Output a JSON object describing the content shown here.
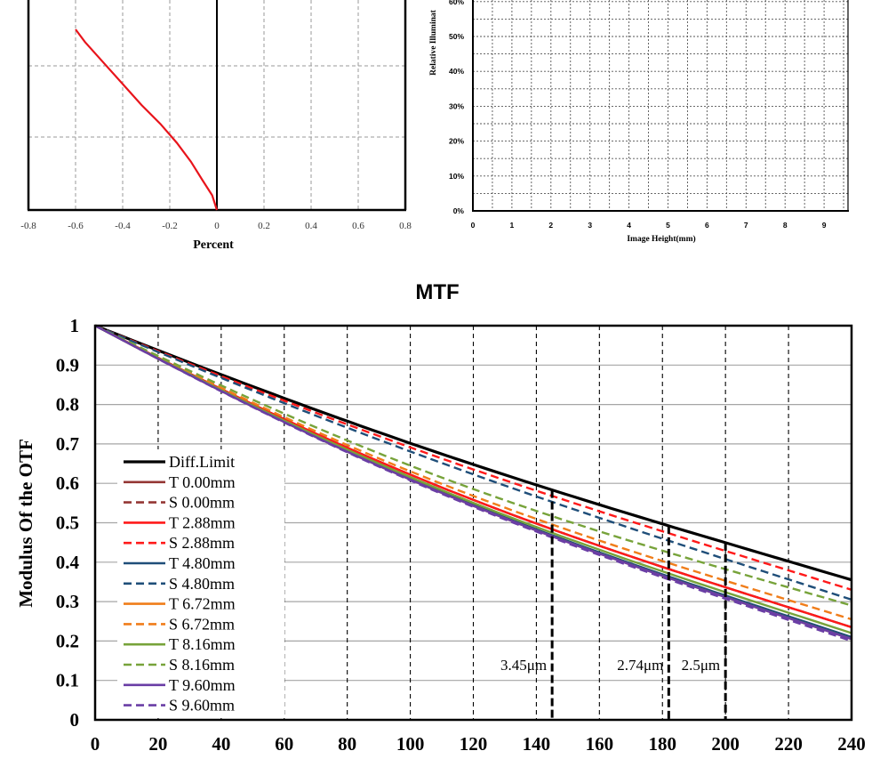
{
  "chart_data": [
    {
      "type": "line",
      "title": "",
      "xlabel": "Percent",
      "ylabel": "",
      "xlim": [
        -0.8,
        0.8
      ],
      "x_ticks": [
        "-0.8",
        "-0.6",
        "-0.4",
        "-0.2",
        "0",
        "0.2",
        "0.4",
        "0.6",
        "0.8"
      ],
      "grid": true,
      "series": [
        {
          "color": "#e8141b",
          "x": [
            0,
            -0.02,
            -0.06,
            -0.11,
            -0.17,
            -0.24,
            -0.32,
            -0.4,
            -0.48,
            -0.56,
            -0.6
          ],
          "y": [
            0,
            0.07,
            0.14,
            0.23,
            0.32,
            0.41,
            0.5,
            0.6,
            0.7,
            0.8,
            0.86
          ]
        }
      ]
    },
    {
      "type": "line",
      "title": "",
      "xlabel": "Image Height(mm)",
      "ylabel": "Relative Illuminat",
      "xlim": [
        0,
        9.6
      ],
      "x_ticks": [
        "0",
        "1",
        "2",
        "3",
        "4",
        "5",
        "6",
        "7",
        "8",
        "9"
      ],
      "y_ticks": [
        "0%",
        "10%",
        "20%",
        "30%",
        "40%",
        "50%",
        "60%"
      ],
      "grid": true,
      "series": []
    },
    {
      "type": "line",
      "title": "MTF",
      "xlabel": "",
      "ylabel": "Modulus Of  the OTF",
      "xlim": [
        0,
        240
      ],
      "ylim": [
        0,
        1
      ],
      "x_ticks": [
        "0",
        "20",
        "40",
        "60",
        "80",
        "100",
        "120",
        "140",
        "160",
        "180",
        "200",
        "220",
        "240"
      ],
      "y_ticks": [
        "0",
        "0.1",
        "0.2",
        "0.3",
        "0.4",
        "0.5",
        "0.6",
        "0.7",
        "0.8",
        "0.9",
        "1"
      ],
      "grid": true,
      "legend": "left",
      "annotations": [
        {
          "text": "3.45μm",
          "x": 145
        },
        {
          "text": "2.74μm",
          "x": 182
        },
        {
          "text": "2.5μm",
          "x": 200
        }
      ],
      "series": [
        {
          "name": "Diff.Limit",
          "color": "#000000",
          "dashed": false,
          "width": 3.2,
          "end": 0.355
        },
        {
          "name": "T 0.00mm",
          "color": "#943634",
          "dashed": false,
          "width": 2.4,
          "end": 0.235
        },
        {
          "name": "S 0.00mm",
          "color": "#943634",
          "dashed": true,
          "width": 2.4,
          "end": 0.235
        },
        {
          "name": "T 2.88mm",
          "color": "#ff1a1a",
          "dashed": false,
          "width": 2.4,
          "end": 0.235
        },
        {
          "name": "S 2.88mm",
          "color": "#ff1a1a",
          "dashed": true,
          "width": 2.4,
          "end": 0.33
        },
        {
          "name": "T 4.80mm",
          "color": "#1f4e79",
          "dashed": false,
          "width": 2.4,
          "end": 0.21
        },
        {
          "name": "S 4.80mm",
          "color": "#1f4e79",
          "dashed": true,
          "width": 2.4,
          "end": 0.305
        },
        {
          "name": "T 6.72mm",
          "color": "#f07d1a",
          "dashed": false,
          "width": 2.4,
          "end": 0.205
        },
        {
          "name": "S 6.72mm",
          "color": "#f07d1a",
          "dashed": true,
          "width": 2.4,
          "end": 0.255
        },
        {
          "name": "T 8.16mm",
          "color": "#77a33a",
          "dashed": false,
          "width": 2.4,
          "end": 0.22
        },
        {
          "name": "S 8.16mm",
          "color": "#77a33a",
          "dashed": true,
          "width": 2.4,
          "end": 0.29
        },
        {
          "name": "T 9.60mm",
          "color": "#6a3ea5",
          "dashed": false,
          "width": 2.4,
          "end": 0.205
        },
        {
          "name": "S 9.60mm",
          "color": "#6a3ea5",
          "dashed": true,
          "width": 2.4,
          "end": 0.2
        }
      ]
    }
  ]
}
